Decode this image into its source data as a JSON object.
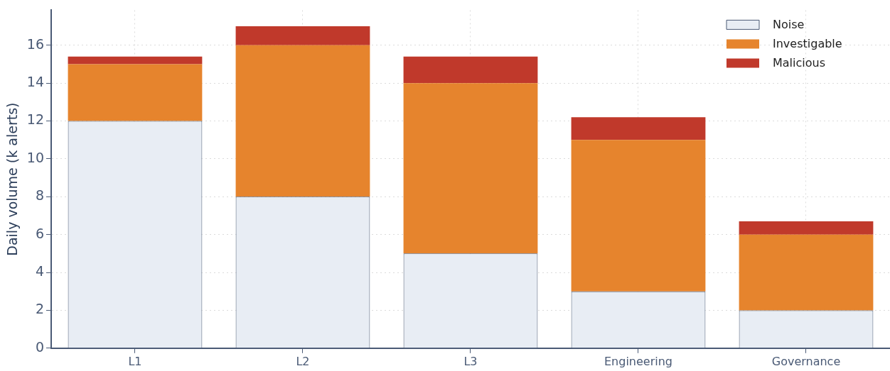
{
  "chart_data": {
    "type": "bar",
    "stacked": true,
    "ylabel": "Daily volume (k alerts)",
    "categories": [
      "L1",
      "L2",
      "L3",
      "Engineering",
      "Governance"
    ],
    "series": [
      {
        "name": "Noise",
        "color": "#e8edf4",
        "values": [
          12,
          8,
          5,
          3,
          2
        ]
      },
      {
        "name": "Investigable",
        "color": "#e6842d",
        "values": [
          3,
          8,
          9,
          8,
          4
        ]
      },
      {
        "name": "Malicious",
        "color": "#c0392b",
        "values": [
          0.4,
          1,
          1.4,
          1.2,
          0.7
        ]
      }
    ],
    "ylim": [
      0,
      17.85
    ],
    "yticks": [
      0,
      2,
      4,
      6,
      8,
      10,
      12,
      14,
      16
    ],
    "grid": true,
    "legend": "top right"
  }
}
